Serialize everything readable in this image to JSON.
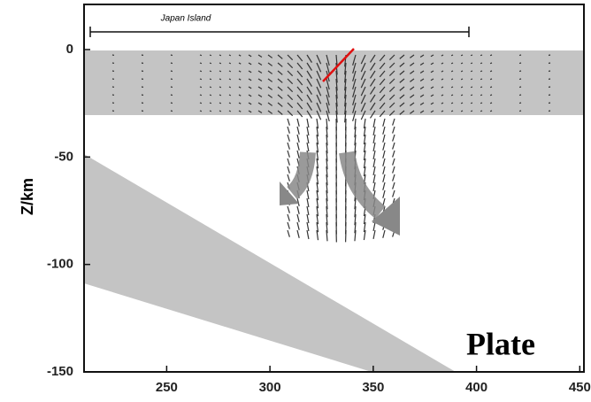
{
  "chart_data": {
    "type": "vector-field",
    "ylabel": "Z/km",
    "annotations": [
      "Japan Island",
      "Plate"
    ],
    "xlim": [
      210,
      452
    ],
    "xticks": [
      250,
      300,
      350,
      400,
      450
    ],
    "ylim": [
      -150,
      21
    ],
    "yticks": [
      0,
      -50,
      -100,
      -150
    ]
  }
}
